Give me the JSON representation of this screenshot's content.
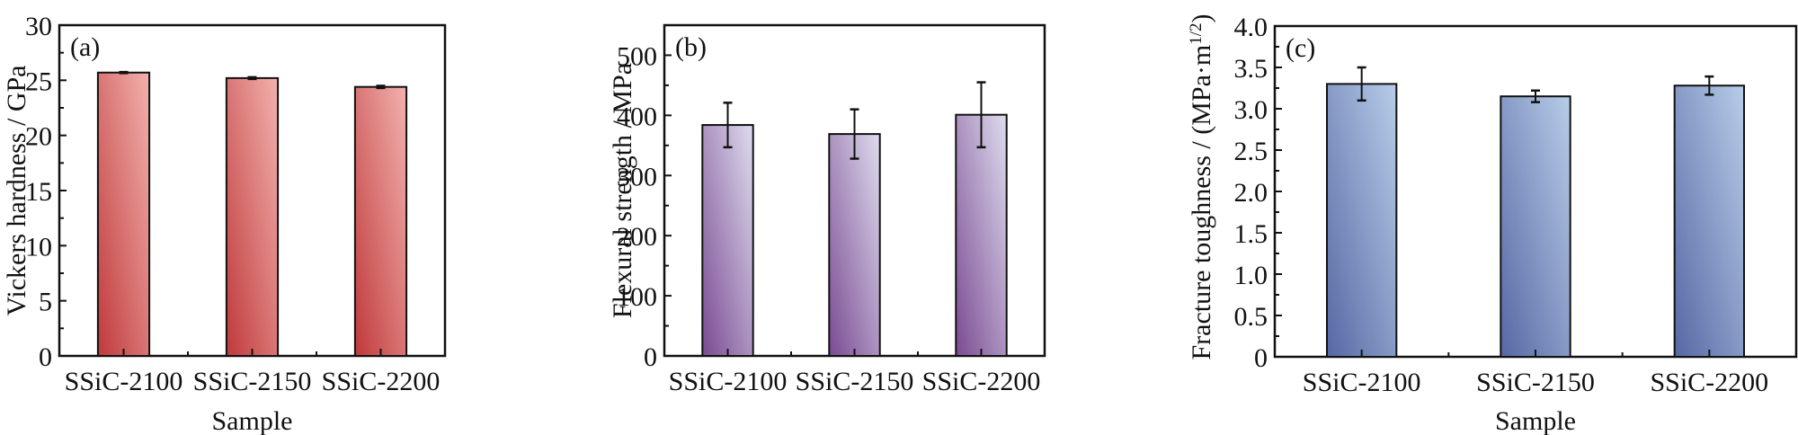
{
  "chart_data": [
    {
      "type": "bar",
      "panel_label": "(a)",
      "title": "",
      "categories": [
        "SSiC-2100",
        "SSiC-2150",
        "SSiC-2200"
      ],
      "values": [
        25.7,
        25.2,
        24.4
      ],
      "errors": [
        0.05,
        0.08,
        0.1
      ],
      "xlabel": "Sample",
      "ylabel": "Vickers hardness / GPa",
      "ylim": [
        0,
        30
      ],
      "yticks": [
        0,
        5,
        10,
        15,
        20,
        25,
        30
      ],
      "ytick_labels": [
        "0",
        "5",
        "10",
        "15",
        "20",
        "25",
        "30"
      ],
      "minor_ytick_step": 2.5,
      "grid": false,
      "legend": "none",
      "bar_color_dark": "#c0393b",
      "bar_color_light": "#f2b2ae"
    },
    {
      "type": "bar",
      "panel_label": "(b)",
      "title": "",
      "categories": [
        "SSiC-2100",
        "SSiC-2150",
        "SSiC-2200"
      ],
      "values": [
        384,
        369,
        401
      ],
      "errors": [
        37,
        41,
        54
      ],
      "xlabel": "",
      "ylabel": "Flexural strength / MPa",
      "ylim": [
        0,
        550
      ],
      "yticks": [
        0,
        100,
        200,
        300,
        400,
        500
      ],
      "ytick_labels": [
        "0",
        "100",
        "200",
        "300",
        "400",
        "500"
      ],
      "minor_ytick_step": 50,
      "grid": false,
      "legend": "none",
      "bar_color_dark": "#7a4a92",
      "bar_color_light": "#dedcee"
    },
    {
      "type": "bar",
      "panel_label": "(c)",
      "title": "",
      "categories": [
        "SSiC-2100",
        "SSiC-2150",
        "SSiC-2200"
      ],
      "values": [
        3.3,
        3.15,
        3.28
      ],
      "errors": [
        0.2,
        0.07,
        0.11
      ],
      "xlabel": "Sample",
      "ylabel": "Fracture toughness / (MPa·m1/2)",
      "ylabel_main": "Fracture toughness / (MPa·m",
      "ylabel_sup": "1/2",
      "ylabel_close": ")",
      "ylim": [
        0,
        4.0
      ],
      "yticks": [
        0,
        0.5,
        1.0,
        1.5,
        2.0,
        2.5,
        3.0,
        3.5,
        4.0
      ],
      "ytick_labels": [
        "0",
        "0.5",
        "1.0",
        "1.5",
        "2.0",
        "2.5",
        "3.0",
        "3.5",
        "4.0"
      ],
      "minor_ytick_step": 0.25,
      "grid": false,
      "legend": "none",
      "bar_color_dark": "#5568a4",
      "bar_color_light": "#b7cde8"
    }
  ]
}
